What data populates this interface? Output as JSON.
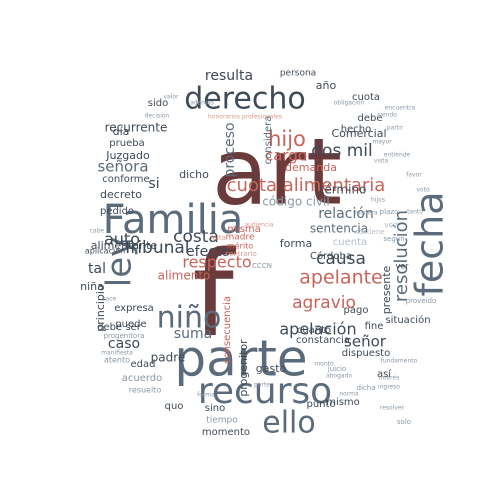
{
  "palette": {
    "dark": "#3f4a57",
    "slate": "#5b6b7c",
    "grey": "#8b98a6",
    "light": "#b4bec8",
    "maroon": "#6b3a3a",
    "red": "#c8645a",
    "salmon": "#dc9a8e"
  },
  "words": [
    {
      "text": "art",
      "color": "maroon"
    },
    {
      "text": "f",
      "color": "maroon"
    },
    {
      "text": "parte",
      "color": "slate"
    },
    {
      "text": "Familia",
      "color": "slate"
    },
    {
      "text": "recurso",
      "color": "slate"
    },
    {
      "text": "derecho",
      "color": "dark"
    },
    {
      "text": "ley",
      "color": "slate"
    },
    {
      "text": "fecha",
      "color": "slate"
    },
    {
      "text": "niño",
      "color": "slate"
    },
    {
      "text": "ello",
      "color": "slate"
    },
    {
      "text": "cuota alimentaria",
      "color": "red"
    },
    {
      "text": "apelante",
      "color": "red"
    },
    {
      "text": "hijo",
      "color": "red"
    },
    {
      "text": "resolución",
      "color": "slate"
    },
    {
      "text": "Tribunal",
      "color": "dark"
    },
    {
      "text": "causa",
      "color": "dark"
    },
    {
      "text": "costa",
      "color": "dark"
    },
    {
      "text": "agravio",
      "color": "red"
    },
    {
      "text": "respecto",
      "color": "red"
    },
    {
      "text": "apelación",
      "color": "dark"
    },
    {
      "text": "dos mil",
      "color": "dark"
    },
    {
      "text": "auto",
      "color": "dark"
    },
    {
      "text": "señor",
      "color": "dark"
    },
    {
      "text": "señora",
      "color": "slate"
    },
    {
      "text": "resulta",
      "color": "dark"
    },
    {
      "text": "relación",
      "color": "slate"
    },
    {
      "text": "efecto",
      "color": "dark"
    },
    {
      "text": "caso",
      "color": "dark"
    },
    {
      "text": "suma",
      "color": "slate"
    },
    {
      "text": "cargo",
      "color": "red"
    },
    {
      "text": "proceso",
      "color": "slate"
    },
    {
      "text": "sentencia",
      "color": "slate"
    },
    {
      "text": "tal",
      "color": "dark"
    },
    {
      "text": "si",
      "color": "dark"
    },
    {
      "text": "alimentante",
      "color": "dark"
    },
    {
      "text": "alimento",
      "color": "red"
    },
    {
      "text": "término",
      "color": "dark"
    },
    {
      "text": "código civil",
      "color": "grey"
    },
    {
      "text": "recurrente",
      "color": "dark"
    },
    {
      "text": "forma",
      "color": "dark"
    },
    {
      "text": "cuenta",
      "color": "light"
    },
    {
      "text": "demanda",
      "color": "red"
    },
    {
      "text": "Comercial",
      "color": "dark"
    },
    {
      "text": "hecho",
      "color": "dark"
    },
    {
      "text": "debe",
      "color": "dark"
    },
    {
      "text": "Juzgado",
      "color": "dark"
    },
    {
      "text": "prueba",
      "color": "dark"
    },
    {
      "text": "decreto",
      "color": "dark"
    },
    {
      "text": "conforme",
      "color": "dark"
    },
    {
      "text": "pedido",
      "color": "dark"
    },
    {
      "text": "dicho",
      "color": "dark"
    },
    {
      "text": "día",
      "color": "dark"
    },
    {
      "text": "sido",
      "color": "dark"
    },
    {
      "text": "año",
      "color": "dark"
    },
    {
      "text": "cuota",
      "color": "dark"
    },
    {
      "text": "persona",
      "color": "dark"
    },
    {
      "text": "considera",
      "color": "slate"
    },
    {
      "text": "expresa",
      "color": "dark"
    },
    {
      "text": "niña",
      "color": "dark"
    },
    {
      "text": "principio",
      "color": "dark"
    },
    {
      "text": "debe ser",
      "color": "dark"
    },
    {
      "text": "padre",
      "color": "dark"
    },
    {
      "text": "puede",
      "color": "dark"
    },
    {
      "text": "edad",
      "color": "dark"
    },
    {
      "text": "acuerdo",
      "color": "grey"
    },
    {
      "text": "resuelto",
      "color": "grey"
    },
    {
      "text": "quo",
      "color": "dark"
    },
    {
      "text": "sino",
      "color": "dark"
    },
    {
      "text": "tiempo",
      "color": "grey"
    },
    {
      "text": "momento",
      "color": "dark"
    },
    {
      "text": "gasto",
      "color": "dark"
    },
    {
      "text": "constancia",
      "color": "dark"
    },
    {
      "text": "cuanto",
      "color": "dark"
    },
    {
      "text": "dispuesto",
      "color": "dark"
    },
    {
      "text": "situación",
      "color": "dark"
    },
    {
      "text": "fine",
      "color": "dark"
    },
    {
      "text": "pago",
      "color": "dark"
    },
    {
      "text": "presente",
      "color": "dark"
    },
    {
      "text": "así",
      "color": "dark"
    },
    {
      "text": "mismo",
      "color": "dark"
    },
    {
      "text": "punto",
      "color": "dark"
    },
    {
      "text": "progenitor",
      "color": "dark"
    },
    {
      "text": "consecuencia",
      "color": "red"
    },
    {
      "text": "Córdoba",
      "color": "dark"
    },
    {
      "text": "misma",
      "color": "red"
    },
    {
      "text": "madre",
      "color": "red"
    },
    {
      "text": "mérito",
      "color": "red"
    },
    {
      "text": "aplicación",
      "color": "dark"
    },
    {
      "text": "atento",
      "color": "grey"
    },
    {
      "text": "contrario",
      "color": "salmon"
    },
    {
      "text": "honorarios profesionales",
      "color": "salmon"
    },
    {
      "text": "decisión",
      "color": "grey"
    },
    {
      "text": "sostiene",
      "color": "light"
    },
    {
      "text": "vez",
      "color": "light"
    },
    {
      "text": "ver",
      "color": "dark"
    },
    {
      "text": "según",
      "color": "grey"
    },
    {
      "text": "plazo",
      "color": "grey"
    },
    {
      "text": "proveído",
      "color": "grey"
    },
    {
      "text": "progenitora",
      "color": "grey"
    },
    {
      "text": "manifiesta",
      "color": "grey"
    },
    {
      "text": "solo",
      "color": "grey"
    },
    {
      "text": "forma",
      "color": "grey"
    },
    {
      "text": "juicio",
      "color": "grey"
    },
    {
      "text": "dicha",
      "color": "grey"
    },
    {
      "text": "fundamento",
      "color": "grey"
    },
    {
      "text": "abogado",
      "color": "grey"
    },
    {
      "text": "monto",
      "color": "grey"
    },
    {
      "text": "valor",
      "color": "grey"
    },
    {
      "text": "obligación",
      "color": "grey"
    },
    {
      "text": "encuentra",
      "color": "grey"
    },
    {
      "text": "parte",
      "color": "grey"
    },
    {
      "text": "vista",
      "color": "grey"
    },
    {
      "text": "favor",
      "color": "grey"
    },
    {
      "text": "CCCN",
      "color": "grey"
    },
    {
      "text": "falta",
      "color": "salmon"
    },
    {
      "text": "audiencia",
      "color": "salmon"
    },
    {
      "text": "manera",
      "color": "grey"
    },
    {
      "text": "cabe",
      "color": "grey"
    },
    {
      "text": "hace",
      "color": "grey"
    },
    {
      "text": "tanto",
      "color": "grey"
    },
    {
      "text": "ingreso",
      "color": "grey"
    },
    {
      "text": "resolver",
      "color": "grey"
    },
    {
      "text": "interés",
      "color": "grey"
    },
    {
      "text": "siendo",
      "color": "grey"
    },
    {
      "text": "mayor",
      "color": "grey"
    },
    {
      "text": "voto",
      "color": "grey"
    },
    {
      "text": "además",
      "color": "grey"
    },
    {
      "text": "entiende",
      "color": "grey"
    },
    {
      "text": "partir",
      "color": "grey"
    },
    {
      "text": "hijos",
      "color": "grey"
    },
    {
      "text": "norma",
      "color": "grey"
    }
  ]
}
